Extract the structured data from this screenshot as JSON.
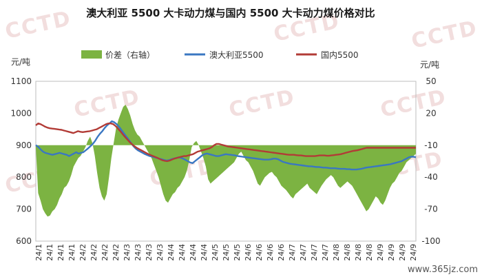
{
  "chart_data": {
    "type": "line",
    "title": "澳大利亚 5500 大卡动力煤与国内 5500 大卡动力煤价格对比",
    "left_unit": "元/吨",
    "right_unit": "元/吨",
    "watermark": "CCTD",
    "site": "www.365jz.com",
    "y_left": {
      "min": 600,
      "max": 1100,
      "ticks": [
        600,
        700,
        800,
        900,
        1000,
        1100
      ]
    },
    "y_right": {
      "min": -100,
      "max": 50,
      "ticks": [
        -100,
        -70,
        -40,
        -10,
        20,
        50
      ]
    },
    "x_tick_labels": [
      "24/1",
      "24/1",
      "24/1",
      "24/1",
      "24/2",
      "24/2",
      "24/2",
      "24/2",
      "24/3",
      "24/3",
      "24/3",
      "24/3",
      "24/4",
      "24/4",
      "24/4",
      "24/4",
      "24/5",
      "24/5",
      "24/5",
      "24/6",
      "24/6",
      "24/6",
      "24/6",
      "24/7",
      "24/7",
      "24/7",
      "24/7",
      "24/8",
      "24/8",
      "24/8",
      "24/8",
      "24/9",
      "24/9",
      "24/9",
      "24/9"
    ],
    "legend": [
      {
        "name": "价差（右轴）",
        "type": "area",
        "color": "#7cb342"
      },
      {
        "name": "澳大利亚5500",
        "type": "line",
        "color": "#3a77c2"
      },
      {
        "name": "国内5500",
        "type": "line",
        "color": "#b23b36"
      }
    ],
    "series": [
      {
        "name": "澳大利亚5500",
        "axis": "left",
        "color": "#3a77c2",
        "values": [
          900,
          895,
          887,
          880,
          876,
          874,
          872,
          870,
          872,
          874,
          876,
          874,
          872,
          870,
          866,
          870,
          874,
          878,
          874,
          876,
          878,
          884,
          890,
          897,
          904,
          914,
          926,
          936,
          944,
          954,
          962,
          968,
          975,
          972,
          966,
          958,
          948,
          938,
          928,
          918,
          908,
          898,
          890,
          884,
          880,
          876,
          872,
          869,
          866,
          864,
          862,
          860,
          858,
          856,
          854,
          852,
          853,
          856,
          858,
          860,
          862,
          861,
          858,
          854,
          850,
          846,
          844,
          850,
          856,
          862,
          868,
          872,
          874,
          872,
          870,
          868,
          866,
          866,
          868,
          870,
          872,
          871,
          870,
          869,
          868,
          866,
          865,
          864,
          863,
          862,
          861,
          860,
          859,
          858,
          857,
          856,
          855,
          855,
          855,
          856,
          858,
          858,
          856,
          852,
          848,
          846,
          844,
          842,
          841,
          840,
          839,
          838,
          837,
          836,
          835,
          834,
          834,
          833,
          832,
          832,
          831,
          830,
          830,
          829,
          828,
          828,
          828,
          827,
          826,
          826,
          826,
          825,
          825,
          824,
          824,
          824,
          825,
          826,
          828,
          830,
          831,
          832,
          833,
          834,
          835,
          836,
          837,
          838,
          839,
          840,
          842,
          844,
          846,
          848,
          850,
          854,
          858,
          862,
          864,
          864,
          862
        ]
      },
      {
        "name": "国内5500",
        "axis": "left",
        "color": "#b23b36",
        "values": [
          962,
          968,
          966,
          962,
          958,
          955,
          953,
          952,
          951,
          950,
          949,
          948,
          946,
          944,
          942,
          940,
          938,
          941,
          944,
          942,
          941,
          942,
          943,
          944,
          946,
          948,
          950,
          954,
          958,
          962,
          966,
          968,
          968,
          966,
          960,
          952,
          944,
          935,
          926,
          918,
          910,
          903,
          897,
          892,
          888,
          884,
          880,
          876,
          872,
          869,
          866,
          863,
          860,
          856,
          853,
          851,
          850,
          852,
          855,
          858,
          860,
          862,
          864,
          866,
          866,
          868,
          870,
          872,
          876,
          880,
          882,
          884,
          886,
          888,
          890,
          894,
          900,
          904,
          904,
          902,
          900,
          898,
          896,
          895,
          894,
          893,
          892,
          891,
          890,
          889,
          888,
          887,
          886,
          885,
          884,
          883,
          882,
          881,
          880,
          879,
          878,
          877,
          876,
          875,
          874,
          873,
          872,
          871,
          870,
          870,
          870,
          869,
          868,
          868,
          867,
          866,
          866,
          866,
          866,
          866,
          867,
          868,
          868,
          868,
          867,
          867,
          868,
          869,
          870,
          871,
          872,
          874,
          876,
          878,
          880,
          882,
          883,
          884,
          886,
          888,
          890,
          892,
          892,
          892,
          892,
          892,
          892,
          892,
          892,
          892,
          892,
          892,
          892,
          892,
          892,
          892,
          892,
          892,
          892,
          892,
          892,
          892,
          892
        ]
      },
      {
        "name": "价差（右轴）",
        "axis": "right",
        "color": "#7cb342",
        "values": [
          -12,
          -55,
          -62,
          -70,
          -74,
          -77,
          -76,
          -72,
          -70,
          -66,
          -60,
          -56,
          -50,
          -48,
          -44,
          -38,
          -30,
          -26,
          -22,
          -20,
          -16,
          -12,
          -6,
          -2,
          -8,
          -20,
          -36,
          -50,
          -58,
          -62,
          -56,
          -40,
          -22,
          -8,
          6,
          14,
          20,
          26,
          28,
          24,
          18,
          10,
          4,
          0,
          -2,
          -6,
          -10,
          -14,
          -18,
          -22,
          -28,
          -34,
          -40,
          -48,
          -56,
          -62,
          -64,
          -60,
          -56,
          -54,
          -50,
          -48,
          -44,
          -40,
          -34,
          -24,
          -12,
          -8,
          -6,
          -10,
          -16,
          -22,
          -30,
          -42,
          -46,
          -44,
          -42,
          -40,
          -38,
          -36,
          -34,
          -32,
          -30,
          -28,
          -26,
          -22,
          -18,
          -16,
          -20,
          -24,
          -26,
          -30,
          -34,
          -40,
          -46,
          -48,
          -44,
          -40,
          -38,
          -36,
          -35,
          -38,
          -40,
          -44,
          -48,
          -50,
          -52,
          -55,
          -58,
          -60,
          -56,
          -54,
          -52,
          -50,
          -48,
          -46,
          -50,
          -52,
          -54,
          -56,
          -52,
          -48,
          -45,
          -42,
          -40,
          -38,
          -40,
          -44,
          -48,
          -50,
          -48,
          -46,
          -44,
          -46,
          -48,
          -52,
          -56,
          -60,
          -64,
          -68,
          -72,
          -70,
          -66,
          -62,
          -58,
          -60,
          -64,
          -66,
          -62,
          -56,
          -50,
          -46,
          -44,
          -40,
          -36,
          -34,
          -30,
          -26,
          -24,
          -22,
          -20,
          -18
        ]
      }
    ]
  }
}
